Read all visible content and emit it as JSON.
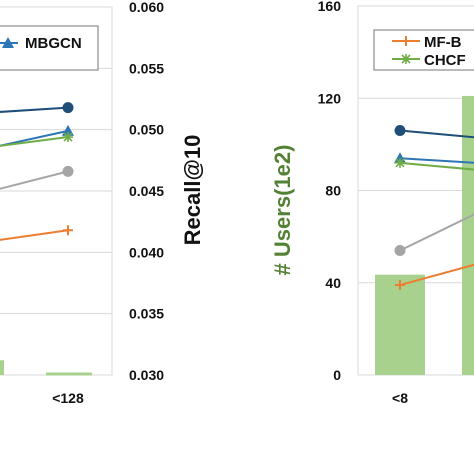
{
  "chart_data": [
    {
      "type": "bar+line",
      "panel": "left",
      "categories": [
        "<128"
      ],
      "y2label": "Recall@10",
      "y2ticks": [
        "0.060",
        "0.055",
        "0.050",
        "0.045",
        "0.040",
        "0.035",
        "0.030"
      ],
      "y2lim": [
        0.03,
        0.06
      ],
      "grid": true,
      "legend": {
        "placement": "top",
        "entries": [
          "MBGCN"
        ]
      },
      "series": [
        {
          "name": "MBGCN",
          "type": "line",
          "color": "#2e75b6",
          "marker": "triangle",
          "values": [
            0.0499
          ]
        },
        {
          "type": "line",
          "color": "#1f4e79",
          "marker": "circle",
          "values": [
            0.0518
          ]
        },
        {
          "type": "line",
          "color": "#70ad47",
          "marker": "star",
          "values": [
            0.0494
          ]
        },
        {
          "type": "line",
          "color": "#a5a5a5",
          "marker": "circle",
          "values": [
            0.0466
          ]
        },
        {
          "type": "line",
          "color": "#ed7d31",
          "marker": "plus",
          "values": [
            0.0418
          ]
        },
        {
          "type": "bar",
          "color": "#a9d18e",
          "values": [
            0.0312
          ]
        }
      ]
    },
    {
      "type": "bar+line",
      "panel": "right",
      "categories": [
        "<8"
      ],
      "ylabel": "# Users(1e2)",
      "ylabel_color": "#548235",
      "yticks": [
        "160",
        "120",
        "80",
        "40",
        "0"
      ],
      "ylim": [
        0,
        160
      ],
      "grid": true,
      "legend": {
        "placement": "top-right",
        "entries": [
          "MF-B",
          "CHCF"
        ]
      },
      "series": [
        {
          "name": "# Users",
          "type": "bar",
          "color": "#a9d18e",
          "values": [
            43.5
          ]
        },
        {
          "type": "line",
          "color": "#1f4e79",
          "marker": "circle",
          "values": [
            106
          ]
        },
        {
          "type": "line",
          "color": "#2e75b6",
          "marker": "triangle",
          "values": [
            94
          ]
        },
        {
          "name": "CHCF",
          "type": "line",
          "color": "#70ad47",
          "marker": "star",
          "values": [
            92
          ]
        },
        {
          "type": "line",
          "color": "#a5a5a5",
          "marker": "circle",
          "values": [
            54
          ]
        },
        {
          "name": "MF-B",
          "type": "line",
          "color": "#ed7d31",
          "marker": "plus",
          "values": [
            39
          ]
        }
      ]
    }
  ]
}
